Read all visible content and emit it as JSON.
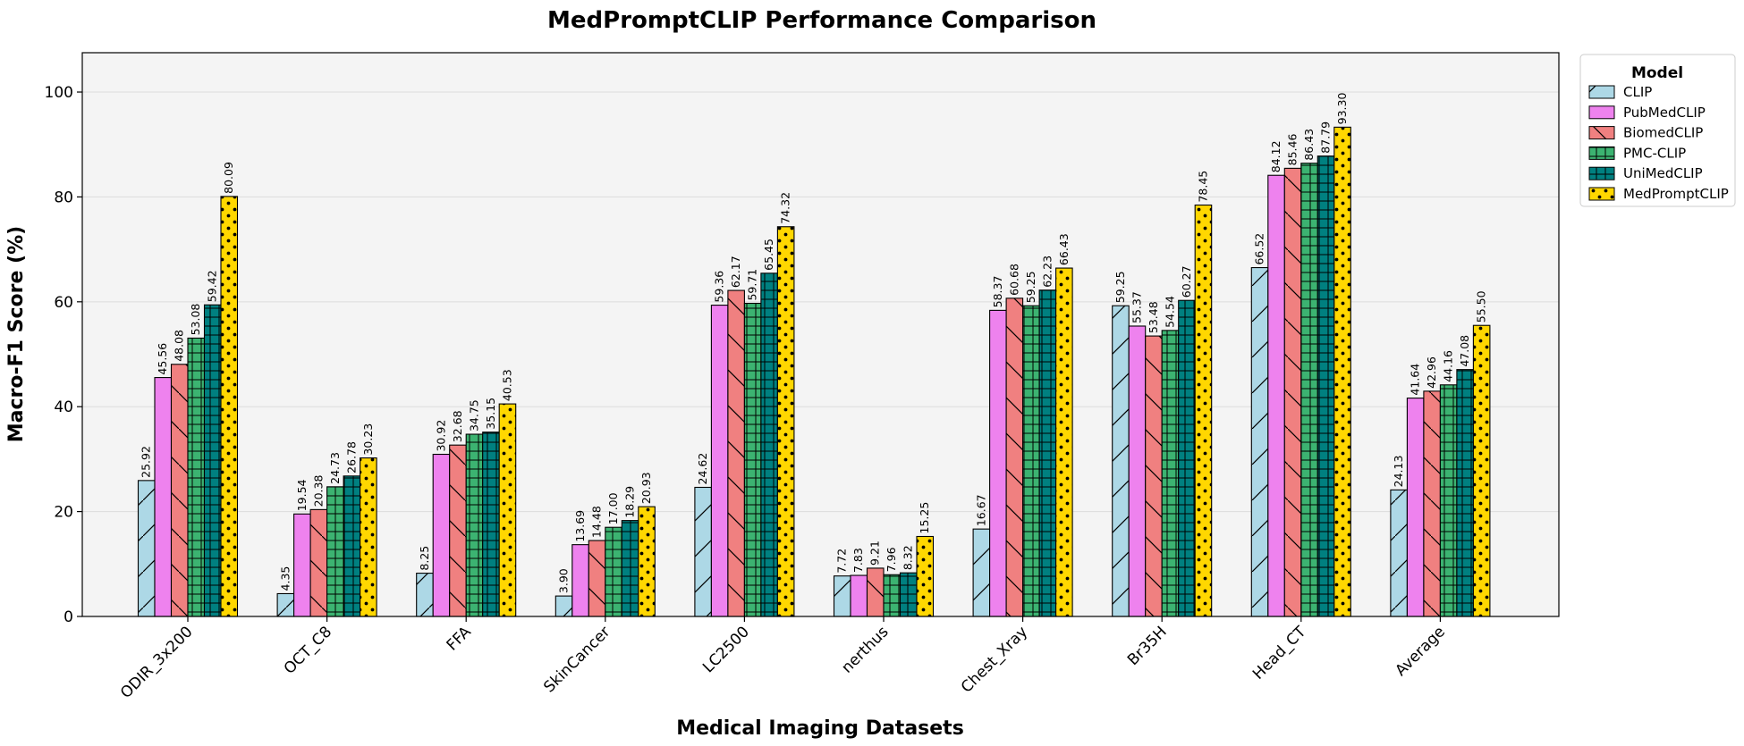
{
  "chart_data": {
    "type": "bar",
    "title": "MedPromptCLIP Performance Comparison",
    "xlabel": "Medical Imaging Datasets",
    "ylabel": "Macro-F1 Score (%)",
    "ylim": [
      0,
      107.5
    ],
    "yticks": [
      "0",
      "20",
      "40",
      "60",
      "80",
      "100"
    ],
    "grid": "horizontal",
    "legend": {
      "title": "Model",
      "placement": "outside-top-right"
    },
    "categories": [
      "ODIR_3x200",
      "OCT_C8",
      "FFA",
      "SkinCancer",
      "LC2500",
      "nerthus",
      "Chest_Xray",
      "Br35H",
      "Head_CT",
      "Average"
    ],
    "series": [
      {
        "name": "CLIP",
        "color": "#add8e6",
        "hatch": "diagonal-up",
        "values": [
          25.92,
          4.35,
          8.25,
          3.9,
          24.62,
          7.72,
          16.67,
          59.25,
          66.52,
          24.13
        ],
        "labels": [
          "25.92",
          "4.35",
          "8.25",
          "3.90",
          "24.62",
          "7.72",
          "16.67",
          "59.25",
          "66.52",
          "24.13"
        ]
      },
      {
        "name": "PubMedCLIP",
        "color": "#ee82ee",
        "hatch": "none",
        "values": [
          45.56,
          19.54,
          30.92,
          13.69,
          59.36,
          7.83,
          58.37,
          55.37,
          84.12,
          41.64
        ],
        "labels": [
          "45.56",
          "19.54",
          "30.92",
          "13.69",
          "59.36",
          "7.83",
          "58.37",
          "55.37",
          "84.12",
          "41.64"
        ]
      },
      {
        "name": "BiomedCLIP",
        "color": "#f08080",
        "hatch": "diagonal-down",
        "values": [
          48.08,
          20.38,
          32.68,
          14.48,
          62.17,
          9.21,
          60.68,
          53.48,
          85.46,
          42.96
        ],
        "labels": [
          "48.08",
          "20.38",
          "32.68",
          "14.48",
          "62.17",
          "9.21",
          "60.68",
          "53.48",
          "85.46",
          "42.96"
        ]
      },
      {
        "name": "PMC-CLIP",
        "color": "#3cb371",
        "hatch": "grid",
        "values": [
          53.08,
          24.73,
          34.75,
          17.0,
          59.71,
          7.96,
          59.25,
          54.54,
          86.43,
          44.16
        ],
        "labels": [
          "53.08",
          "24.73",
          "34.75",
          "17.00",
          "59.71",
          "7.96",
          "59.25",
          "54.54",
          "86.43",
          "44.16"
        ]
      },
      {
        "name": "UniMedCLIP",
        "color": "#008080",
        "hatch": "grid",
        "values": [
          59.42,
          26.78,
          35.15,
          18.29,
          65.45,
          8.32,
          62.23,
          60.27,
          87.79,
          47.08
        ],
        "labels": [
          "59.42",
          "26.78",
          "35.15",
          "18.29",
          "65.45",
          "8.32",
          "62.23",
          "60.27",
          "87.79",
          "47.08"
        ]
      },
      {
        "name": "MedPromptCLIP",
        "color": "#ffd700",
        "hatch": "dots",
        "values": [
          80.09,
          30.23,
          40.53,
          20.93,
          74.32,
          15.25,
          66.43,
          78.45,
          93.3,
          55.5
        ],
        "labels": [
          "80.09",
          "30.23",
          "40.53",
          "20.93",
          "74.32",
          "15.25",
          "66.43",
          "78.45",
          "93.30",
          "55.50"
        ]
      }
    ]
  }
}
